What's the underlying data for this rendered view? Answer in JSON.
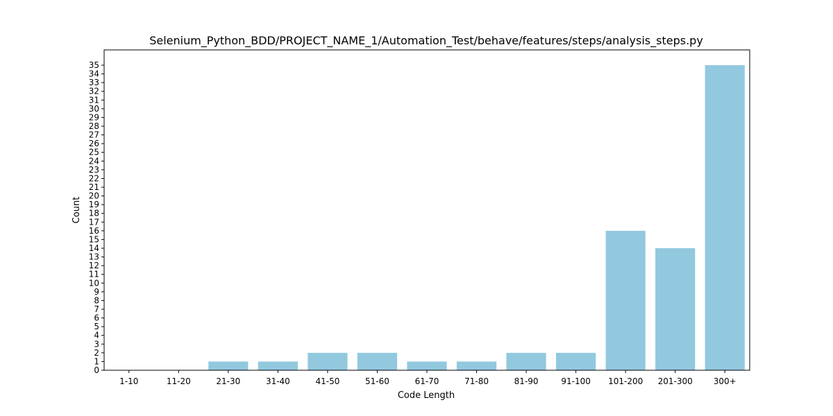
{
  "chart_data": {
    "type": "bar",
    "title": "Selenium_Python_BDD/PROJECT_NAME_1/Automation_Test/behave/features/steps/analysis_steps.py",
    "xlabel": "Code Length",
    "ylabel": "Count",
    "categories": [
      "1-10",
      "11-20",
      "21-30",
      "31-40",
      "41-50",
      "51-60",
      "61-70",
      "71-80",
      "81-90",
      "91-100",
      "101-200",
      "201-300",
      "300+"
    ],
    "values": [
      0,
      0,
      1,
      1,
      2,
      2,
      1,
      1,
      2,
      2,
      16,
      14,
      35
    ],
    "ylim": [
      0,
      36.75
    ],
    "yticks": [
      0,
      1,
      2,
      3,
      4,
      5,
      6,
      7,
      8,
      9,
      10,
      11,
      12,
      13,
      14,
      15,
      16,
      17,
      18,
      19,
      20,
      21,
      22,
      23,
      24,
      25,
      26,
      27,
      28,
      29,
      30,
      31,
      32,
      33,
      34,
      35
    ],
    "grid": false,
    "legend": "none",
    "bar_color": "#92c9df"
  }
}
